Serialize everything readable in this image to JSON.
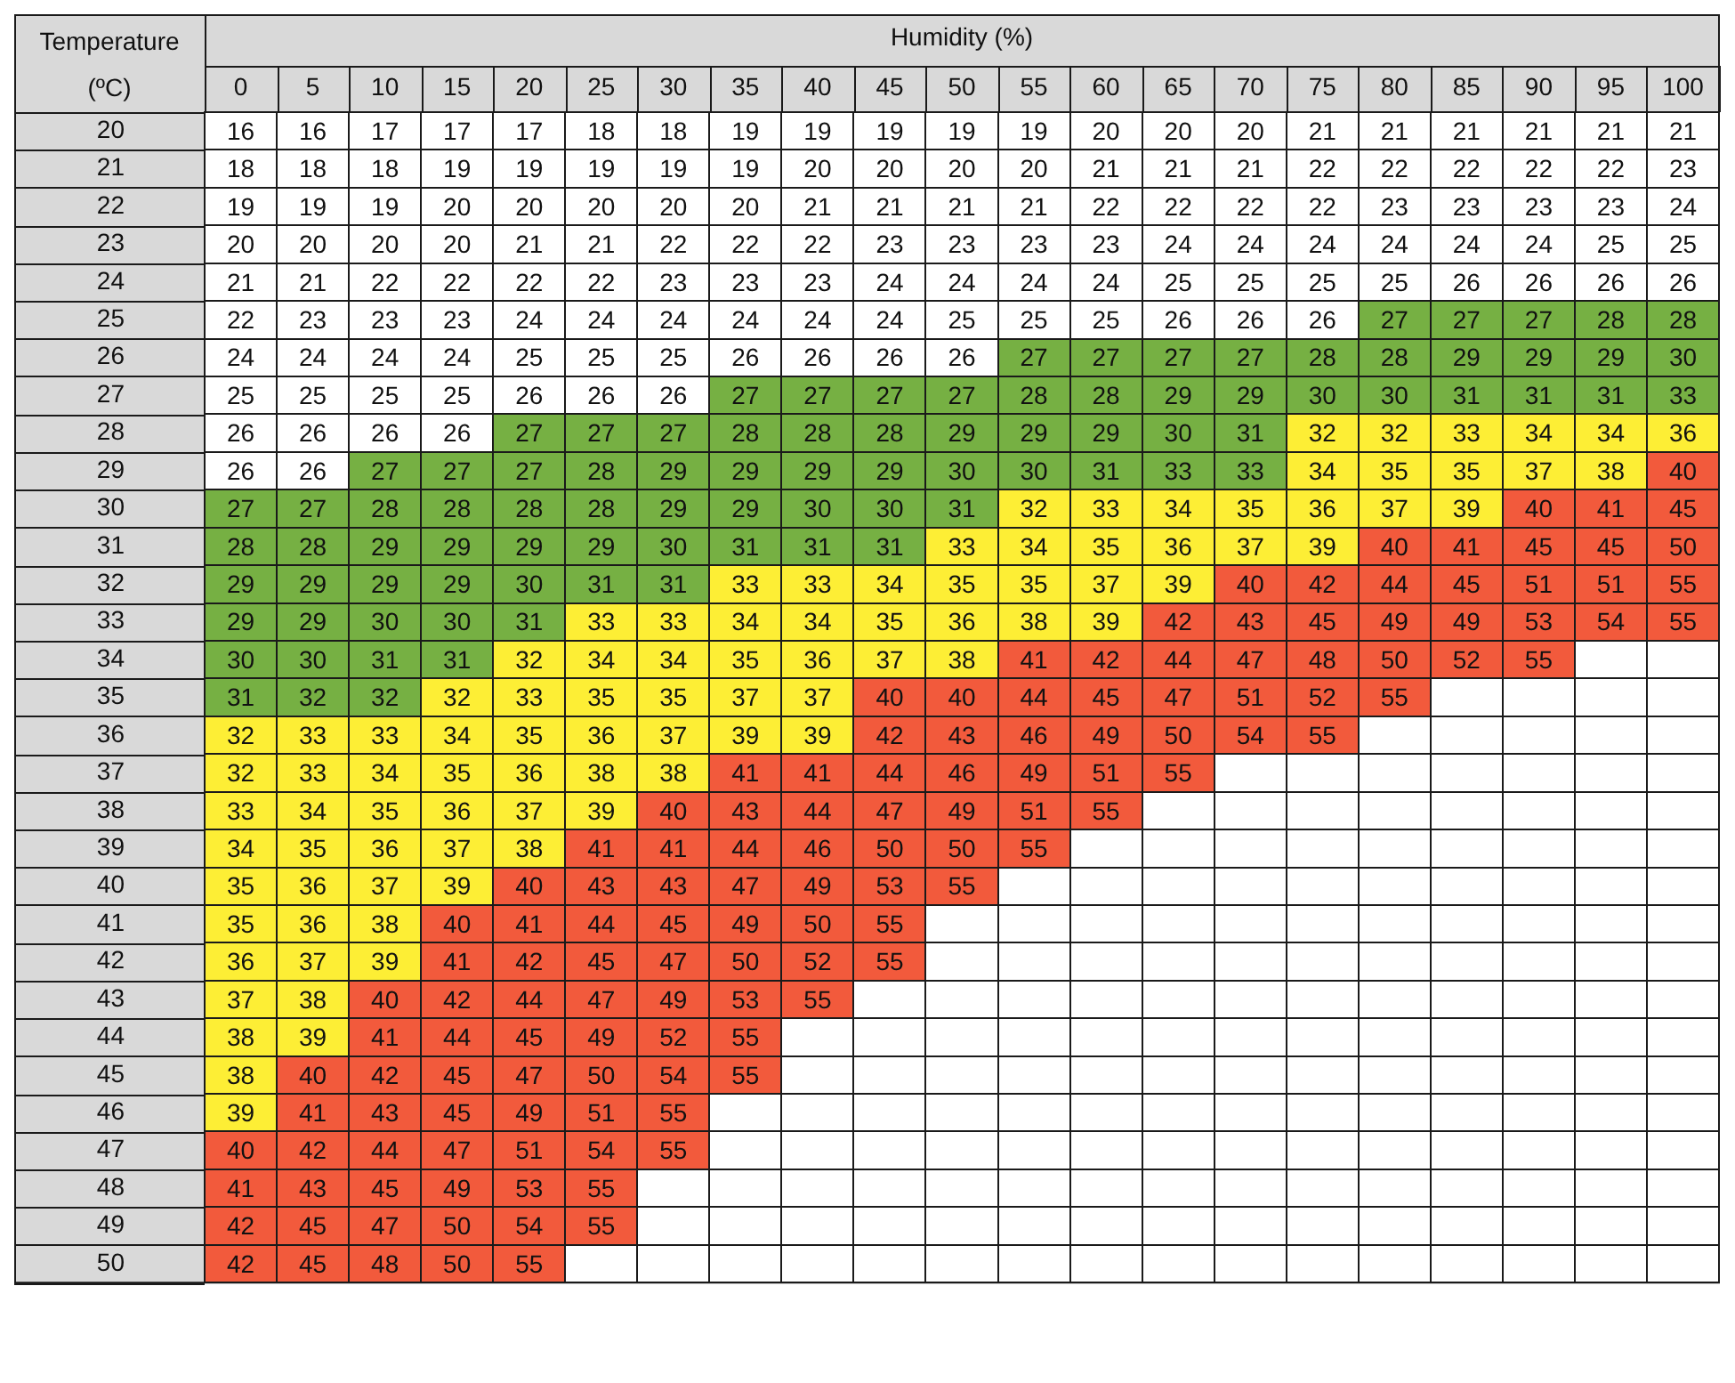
{
  "chart_data": {
    "type": "heatmap",
    "xlabel": "Humidity (%)",
    "ylabel": "Temperature (ºC)",
    "grid": true,
    "data_labels": true,
    "categories": [
      "0",
      "5",
      "10",
      "15",
      "20",
      "25",
      "30",
      "35",
      "40",
      "45",
      "50",
      "55",
      "60",
      "65",
      "70",
      "75",
      "80",
      "85",
      "90",
      "95",
      "100"
    ],
    "y_categories": [
      "20",
      "21",
      "22",
      "23",
      "24",
      "25",
      "26",
      "27",
      "28",
      "29",
      "30",
      "31",
      "32",
      "33",
      "34",
      "35",
      "36",
      "37",
      "38",
      "39",
      "40",
      "41",
      "42",
      "43",
      "44",
      "45",
      "46",
      "47",
      "48",
      "49",
      "50"
    ],
    "cells": [
      [
        16,
        16,
        17,
        17,
        17,
        18,
        18,
        19,
        19,
        19,
        19,
        19,
        20,
        20,
        20,
        21,
        21,
        21,
        21,
        21,
        21
      ],
      [
        18,
        18,
        18,
        19,
        19,
        19,
        19,
        19,
        20,
        20,
        20,
        20,
        21,
        21,
        21,
        22,
        22,
        22,
        22,
        22,
        23
      ],
      [
        19,
        19,
        19,
        20,
        20,
        20,
        20,
        20,
        21,
        21,
        21,
        21,
        22,
        22,
        22,
        22,
        23,
        23,
        23,
        23,
        24
      ],
      [
        20,
        20,
        20,
        20,
        21,
        21,
        22,
        22,
        22,
        23,
        23,
        23,
        23,
        24,
        24,
        24,
        24,
        24,
        24,
        25,
        25
      ],
      [
        21,
        21,
        22,
        22,
        22,
        22,
        23,
        23,
        23,
        24,
        24,
        24,
        24,
        25,
        25,
        25,
        25,
        26,
        26,
        26,
        26
      ],
      [
        22,
        23,
        23,
        23,
        24,
        24,
        24,
        24,
        24,
        24,
        25,
        25,
        25,
        26,
        26,
        26,
        27,
        27,
        27,
        28,
        28
      ],
      [
        24,
        24,
        24,
        24,
        25,
        25,
        25,
        26,
        26,
        26,
        26,
        27,
        27,
        27,
        27,
        28,
        28,
        29,
        29,
        29,
        30
      ],
      [
        25,
        25,
        25,
        25,
        26,
        26,
        26,
        27,
        27,
        27,
        27,
        28,
        28,
        29,
        29,
        30,
        30,
        31,
        31,
        31,
        33
      ],
      [
        26,
        26,
        26,
        26,
        27,
        27,
        27,
        28,
        28,
        28,
        29,
        29,
        29,
        30,
        31,
        32,
        32,
        33,
        34,
        34,
        36
      ],
      [
        26,
        26,
        27,
        27,
        27,
        28,
        29,
        29,
        29,
        29,
        30,
        30,
        31,
        33,
        33,
        34,
        35,
        35,
        37,
        38,
        40
      ],
      [
        27,
        27,
        28,
        28,
        28,
        28,
        29,
        29,
        30,
        30,
        31,
        32,
        33,
        34,
        35,
        36,
        37,
        39,
        40,
        41,
        45
      ],
      [
        28,
        28,
        29,
        29,
        29,
        29,
        30,
        31,
        31,
        31,
        33,
        34,
        35,
        36,
        37,
        39,
        40,
        41,
        45,
        45,
        50
      ],
      [
        29,
        29,
        29,
        29,
        30,
        31,
        31,
        33,
        33,
        34,
        35,
        35,
        37,
        39,
        40,
        42,
        44,
        45,
        51,
        51,
        55
      ],
      [
        29,
        29,
        30,
        30,
        31,
        33,
        33,
        34,
        34,
        35,
        36,
        38,
        39,
        42,
        43,
        45,
        49,
        49,
        53,
        54,
        55
      ],
      [
        30,
        30,
        31,
        31,
        32,
        34,
        34,
        35,
        36,
        37,
        38,
        41,
        42,
        44,
        47,
        48,
        50,
        52,
        55,
        null,
        null
      ],
      [
        31,
        32,
        32,
        32,
        33,
        35,
        35,
        37,
        37,
        40,
        40,
        44,
        45,
        47,
        51,
        52,
        55,
        null,
        null,
        null,
        null
      ],
      [
        32,
        33,
        33,
        34,
        35,
        36,
        37,
        39,
        39,
        42,
        43,
        46,
        49,
        50,
        54,
        55,
        null,
        null,
        null,
        null,
        null
      ],
      [
        32,
        33,
        34,
        35,
        36,
        38,
        38,
        41,
        41,
        44,
        46,
        49,
        51,
        55,
        null,
        null,
        null,
        null,
        null,
        null,
        null
      ],
      [
        33,
        34,
        35,
        36,
        37,
        39,
        40,
        43,
        44,
        47,
        49,
        51,
        55,
        null,
        null,
        null,
        null,
        null,
        null,
        null,
        null
      ],
      [
        34,
        35,
        36,
        37,
        38,
        41,
        41,
        44,
        46,
        50,
        50,
        55,
        null,
        null,
        null,
        null,
        null,
        null,
        null,
        null,
        null
      ],
      [
        35,
        36,
        37,
        39,
        40,
        43,
        43,
        47,
        49,
        53,
        55,
        null,
        null,
        null,
        null,
        null,
        null,
        null,
        null,
        null,
        null
      ],
      [
        35,
        36,
        38,
        40,
        41,
        44,
        45,
        49,
        50,
        55,
        null,
        null,
        null,
        null,
        null,
        null,
        null,
        null,
        null,
        null,
        null
      ],
      [
        36,
        37,
        39,
        41,
        42,
        45,
        47,
        50,
        52,
        55,
        null,
        null,
        null,
        null,
        null,
        null,
        null,
        null,
        null,
        null,
        null
      ],
      [
        37,
        38,
        40,
        42,
        44,
        47,
        49,
        53,
        55,
        null,
        null,
        null,
        null,
        null,
        null,
        null,
        null,
        null,
        null,
        null,
        null
      ],
      [
        38,
        39,
        41,
        44,
        45,
        49,
        52,
        55,
        null,
        null,
        null,
        null,
        null,
        null,
        null,
        null,
        null,
        null,
        null,
        null,
        null
      ],
      [
        38,
        40,
        42,
        45,
        47,
        50,
        54,
        55,
        null,
        null,
        null,
        null,
        null,
        null,
        null,
        null,
        null,
        null,
        null,
        null,
        null
      ],
      [
        39,
        41,
        43,
        45,
        49,
        51,
        55,
        null,
        null,
        null,
        null,
        null,
        null,
        null,
        null,
        null,
        null,
        null,
        null,
        null,
        null
      ],
      [
        40,
        42,
        44,
        47,
        51,
        54,
        55,
        null,
        null,
        null,
        null,
        null,
        null,
        null,
        null,
        null,
        null,
        null,
        null,
        null,
        null
      ],
      [
        41,
        43,
        45,
        49,
        53,
        55,
        null,
        null,
        null,
        null,
        null,
        null,
        null,
        null,
        null,
        null,
        null,
        null,
        null,
        null,
        null
      ],
      [
        42,
        45,
        47,
        50,
        54,
        55,
        null,
        null,
        null,
        null,
        null,
        null,
        null,
        null,
        null,
        null,
        null,
        null,
        null,
        null,
        null
      ],
      [
        42,
        45,
        48,
        50,
        55,
        null,
        null,
        null,
        null,
        null,
        null,
        null,
        null,
        null,
        null,
        null,
        null,
        null,
        null,
        null,
        null
      ]
    ],
    "colors": [
      [
        "#ffffff",
        "#ffffff",
        "#ffffff",
        "#ffffff",
        "#ffffff",
        "#ffffff",
        "#ffffff",
        "#ffffff",
        "#ffffff",
        "#ffffff",
        "#ffffff",
        "#ffffff",
        "#ffffff",
        "#ffffff",
        "#ffffff",
        "#ffffff",
        "#ffffff",
        "#ffffff",
        "#ffffff",
        "#ffffff",
        "#ffffff"
      ],
      [
        "#ffffff",
        "#ffffff",
        "#ffffff",
        "#ffffff",
        "#ffffff",
        "#ffffff",
        "#ffffff",
        "#ffffff",
        "#ffffff",
        "#ffffff",
        "#ffffff",
        "#ffffff",
        "#ffffff",
        "#ffffff",
        "#ffffff",
        "#ffffff",
        "#ffffff",
        "#ffffff",
        "#ffffff",
        "#ffffff",
        "#ffffff"
      ],
      [
        "#ffffff",
        "#ffffff",
        "#ffffff",
        "#ffffff",
        "#ffffff",
        "#ffffff",
        "#ffffff",
        "#ffffff",
        "#ffffff",
        "#ffffff",
        "#ffffff",
        "#ffffff",
        "#ffffff",
        "#ffffff",
        "#ffffff",
        "#ffffff",
        "#ffffff",
        "#ffffff",
        "#ffffff",
        "#ffffff",
        "#ffffff"
      ],
      [
        "#ffffff",
        "#ffffff",
        "#ffffff",
        "#ffffff",
        "#ffffff",
        "#ffffff",
        "#ffffff",
        "#ffffff",
        "#ffffff",
        "#ffffff",
        "#ffffff",
        "#ffffff",
        "#ffffff",
        "#ffffff",
        "#ffffff",
        "#ffffff",
        "#ffffff",
        "#ffffff",
        "#ffffff",
        "#ffffff",
        "#ffffff"
      ],
      [
        "#ffffff",
        "#ffffff",
        "#ffffff",
        "#ffffff",
        "#ffffff",
        "#ffffff",
        "#ffffff",
        "#ffffff",
        "#ffffff",
        "#ffffff",
        "#ffffff",
        "#ffffff",
        "#ffffff",
        "#ffffff",
        "#ffffff",
        "#ffffff",
        "#ffffff",
        "#ffffff",
        "#ffffff",
        "#ffffff",
        "#ffffff"
      ],
      [
        "#ffffff",
        "#ffffff",
        "#ffffff",
        "#ffffff",
        "#ffffff",
        "#ffffff",
        "#ffffff",
        "#ffffff",
        "#ffffff",
        "#ffffff",
        "#ffffff",
        "#ffffff",
        "#ffffff",
        "#ffffff",
        "#ffffff",
        "#ffffff",
        "#76b043",
        "#76b043",
        "#76b043",
        "#76b043",
        "#76b043"
      ],
      [
        "#ffffff",
        "#ffffff",
        "#ffffff",
        "#ffffff",
        "#ffffff",
        "#ffffff",
        "#ffffff",
        "#ffffff",
        "#ffffff",
        "#ffffff",
        "#ffffff",
        "#76b043",
        "#76b043",
        "#76b043",
        "#76b043",
        "#76b043",
        "#76b043",
        "#76b043",
        "#76b043",
        "#76b043",
        "#76b043"
      ],
      [
        "#ffffff",
        "#ffffff",
        "#ffffff",
        "#ffffff",
        "#ffffff",
        "#ffffff",
        "#ffffff",
        "#76b043",
        "#76b043",
        "#76b043",
        "#76b043",
        "#76b043",
        "#76b043",
        "#76b043",
        "#76b043",
        "#76b043",
        "#76b043",
        "#76b043",
        "#76b043",
        "#76b043",
        "#76b043"
      ],
      [
        "#ffffff",
        "#ffffff",
        "#ffffff",
        "#ffffff",
        "#76b043",
        "#76b043",
        "#76b043",
        "#76b043",
        "#76b043",
        "#76b043",
        "#76b043",
        "#76b043",
        "#76b043",
        "#76b043",
        "#76b043",
        "#fdee35",
        "#fdee35",
        "#fdee35",
        "#fdee35",
        "#fdee35",
        "#fdee35"
      ],
      [
        "#ffffff",
        "#ffffff",
        "#76b043",
        "#76b043",
        "#76b043",
        "#76b043",
        "#76b043",
        "#76b043",
        "#76b043",
        "#76b043",
        "#76b043",
        "#76b043",
        "#76b043",
        "#76b043",
        "#76b043",
        "#fdee35",
        "#fdee35",
        "#fdee35",
        "#fdee35",
        "#fdee35",
        "#f25a3c"
      ],
      [
        "#76b043",
        "#76b043",
        "#76b043",
        "#76b043",
        "#76b043",
        "#76b043",
        "#76b043",
        "#76b043",
        "#76b043",
        "#76b043",
        "#76b043",
        "#fdee35",
        "#fdee35",
        "#fdee35",
        "#fdee35",
        "#fdee35",
        "#fdee35",
        "#fdee35",
        "#f25a3c",
        "#f25a3c",
        "#f25a3c"
      ],
      [
        "#76b043",
        "#76b043",
        "#76b043",
        "#76b043",
        "#76b043",
        "#76b043",
        "#76b043",
        "#76b043",
        "#76b043",
        "#76b043",
        "#fdee35",
        "#fdee35",
        "#fdee35",
        "#fdee35",
        "#fdee35",
        "#fdee35",
        "#f25a3c",
        "#f25a3c",
        "#f25a3c",
        "#f25a3c",
        "#f25a3c"
      ],
      [
        "#76b043",
        "#76b043",
        "#76b043",
        "#76b043",
        "#76b043",
        "#76b043",
        "#76b043",
        "#fdee35",
        "#fdee35",
        "#fdee35",
        "#fdee35",
        "#fdee35",
        "#fdee35",
        "#fdee35",
        "#f25a3c",
        "#f25a3c",
        "#f25a3c",
        "#f25a3c",
        "#f25a3c",
        "#f25a3c",
        "#f25a3c"
      ],
      [
        "#76b043",
        "#76b043",
        "#76b043",
        "#76b043",
        "#76b043",
        "#fdee35",
        "#fdee35",
        "#fdee35",
        "#fdee35",
        "#fdee35",
        "#fdee35",
        "#fdee35",
        "#fdee35",
        "#f25a3c",
        "#f25a3c",
        "#f25a3c",
        "#f25a3c",
        "#f25a3c",
        "#f25a3c",
        "#f25a3c",
        "#f25a3c"
      ],
      [
        "#76b043",
        "#76b043",
        "#76b043",
        "#76b043",
        "#fdee35",
        "#fdee35",
        "#fdee35",
        "#fdee35",
        "#fdee35",
        "#fdee35",
        "#fdee35",
        "#f25a3c",
        "#f25a3c",
        "#f25a3c",
        "#f25a3c",
        "#f25a3c",
        "#f25a3c",
        "#f25a3c",
        "#f25a3c",
        null,
        null
      ],
      [
        "#76b043",
        "#76b043",
        "#76b043",
        "#fdee35",
        "#fdee35",
        "#fdee35",
        "#fdee35",
        "#fdee35",
        "#fdee35",
        "#f25a3c",
        "#f25a3c",
        "#f25a3c",
        "#f25a3c",
        "#f25a3c",
        "#f25a3c",
        "#f25a3c",
        "#f25a3c",
        null,
        null,
        null,
        null
      ],
      [
        "#fdee35",
        "#fdee35",
        "#fdee35",
        "#fdee35",
        "#fdee35",
        "#fdee35",
        "#fdee35",
        "#fdee35",
        "#fdee35",
        "#f25a3c",
        "#f25a3c",
        "#f25a3c",
        "#f25a3c",
        "#f25a3c",
        "#f25a3c",
        "#f25a3c",
        null,
        null,
        null,
        null,
        null
      ],
      [
        "#fdee35",
        "#fdee35",
        "#fdee35",
        "#fdee35",
        "#fdee35",
        "#fdee35",
        "#fdee35",
        "#f25a3c",
        "#f25a3c",
        "#f25a3c",
        "#f25a3c",
        "#f25a3c",
        "#f25a3c",
        "#f25a3c",
        null,
        null,
        null,
        null,
        null,
        null,
        null
      ],
      [
        "#fdee35",
        "#fdee35",
        "#fdee35",
        "#fdee35",
        "#fdee35",
        "#fdee35",
        "#f25a3c",
        "#f25a3c",
        "#f25a3c",
        "#f25a3c",
        "#f25a3c",
        "#f25a3c",
        "#f25a3c",
        null,
        null,
        null,
        null,
        null,
        null,
        null,
        null
      ],
      [
        "#fdee35",
        "#fdee35",
        "#fdee35",
        "#fdee35",
        "#fdee35",
        "#f25a3c",
        "#f25a3c",
        "#f25a3c",
        "#f25a3c",
        "#f25a3c",
        "#f25a3c",
        "#f25a3c",
        null,
        null,
        null,
        null,
        null,
        null,
        null,
        null,
        null
      ],
      [
        "#fdee35",
        "#fdee35",
        "#fdee35",
        "#fdee35",
        "#f25a3c",
        "#f25a3c",
        "#f25a3c",
        "#f25a3c",
        "#f25a3c",
        "#f25a3c",
        "#f25a3c",
        null,
        null,
        null,
        null,
        null,
        null,
        null,
        null,
        null,
        null
      ],
      [
        "#fdee35",
        "#fdee35",
        "#fdee35",
        "#f25a3c",
        "#f25a3c",
        "#f25a3c",
        "#f25a3c",
        "#f25a3c",
        "#f25a3c",
        "#f25a3c",
        null,
        null,
        null,
        null,
        null,
        null,
        null,
        null,
        null,
        null,
        null
      ],
      [
        "#fdee35",
        "#fdee35",
        "#fdee35",
        "#f25a3c",
        "#f25a3c",
        "#f25a3c",
        "#f25a3c",
        "#f25a3c",
        "#f25a3c",
        "#f25a3c",
        null,
        null,
        null,
        null,
        null,
        null,
        null,
        null,
        null,
        null,
        null
      ],
      [
        "#fdee35",
        "#fdee35",
        "#f25a3c",
        "#f25a3c",
        "#f25a3c",
        "#f25a3c",
        "#f25a3c",
        "#f25a3c",
        "#f25a3c",
        null,
        null,
        null,
        null,
        null,
        null,
        null,
        null,
        null,
        null,
        null,
        null
      ],
      [
        "#fdee35",
        "#fdee35",
        "#f25a3c",
        "#f25a3c",
        "#f25a3c",
        "#f25a3c",
        "#f25a3c",
        "#f25a3c",
        null,
        null,
        null,
        null,
        null,
        null,
        null,
        null,
        null,
        null,
        null,
        null,
        null
      ],
      [
        "#fdee35",
        "#f25a3c",
        "#f25a3c",
        "#f25a3c",
        "#f25a3c",
        "#f25a3c",
        "#f25a3c",
        "#f25a3c",
        null,
        null,
        null,
        null,
        null,
        null,
        null,
        null,
        null,
        null,
        null,
        null,
        null
      ],
      [
        "#fdee35",
        "#f25a3c",
        "#f25a3c",
        "#f25a3c",
        "#f25a3c",
        "#f25a3c",
        "#f25a3c",
        null,
        null,
        null,
        null,
        null,
        null,
        null,
        null,
        null,
        null,
        null,
        null,
        null,
        null
      ],
      [
        "#f25a3c",
        "#f25a3c",
        "#f25a3c",
        "#f25a3c",
        "#f25a3c",
        "#f25a3c",
        "#f25a3c",
        null,
        null,
        null,
        null,
        null,
        null,
        null,
        null,
        null,
        null,
        null,
        null,
        null,
        null
      ],
      [
        "#f25a3c",
        "#f25a3c",
        "#f25a3c",
        "#f25a3c",
        "#f25a3c",
        "#f25a3c",
        null,
        null,
        null,
        null,
        null,
        null,
        null,
        null,
        null,
        null,
        null,
        null,
        null,
        null,
        null
      ],
      [
        "#f25a3c",
        "#f25a3c",
        "#f25a3c",
        "#f25a3c",
        "#f25a3c",
        "#f25a3c",
        null,
        null,
        null,
        null,
        null,
        null,
        null,
        null,
        null,
        null,
        null,
        null,
        null,
        null,
        null
      ],
      [
        "#f25a3c",
        "#f25a3c",
        "#f25a3c",
        "#f25a3c",
        "#f25a3c",
        null,
        null,
        null,
        null,
        null,
        null,
        null,
        null,
        null,
        null,
        null,
        null,
        null,
        null,
        null,
        null
      ]
    ]
  }
}
